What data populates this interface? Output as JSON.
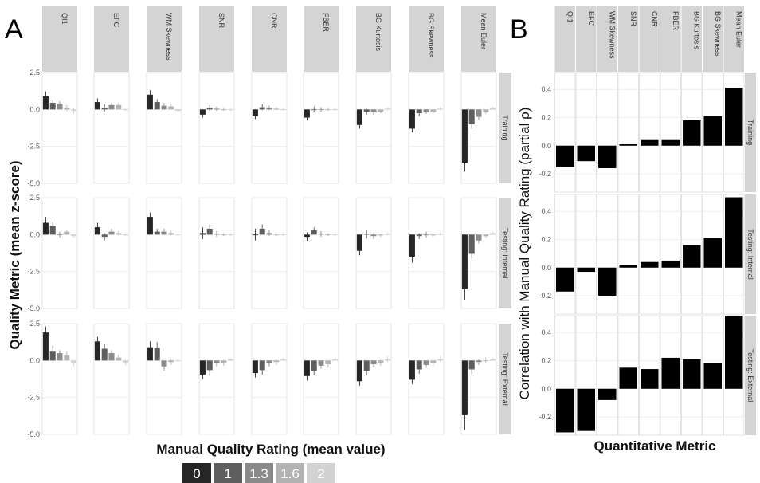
{
  "panel_a": {
    "letter": "A",
    "xlabel": "Manual Quality Rating (mean value)",
    "ylabel": "Quality Metric (mean z-score)"
  },
  "panel_b": {
    "letter": "B",
    "xlabel": "Quantitative Metric",
    "ylabel": "Correlation with Manual Quality Rating (partial ρ)"
  },
  "legend": {
    "items": [
      {
        "label": "0",
        "color": "#262626"
      },
      {
        "label": "1",
        "color": "#5e5e5e"
      },
      {
        "label": "1.3",
        "color": "#8a8a8a"
      },
      {
        "label": "1.6",
        "color": "#b3b3b3"
      },
      {
        "label": "2",
        "color": "#d2d2d2"
      }
    ]
  },
  "chart_data": [
    {
      "type": "bar",
      "panel": "A",
      "metrics": [
        "QI1",
        "EFC",
        "WM Skewness",
        "SNR",
        "CNR",
        "FBER",
        "BG Kurtosis",
        "BG Skewness",
        "Mean Euler"
      ],
      "rows": [
        "Training",
        "Testing: Internal",
        "Testing: External"
      ],
      "categories": [
        "0",
        "1",
        "1.3",
        "1.6",
        "2"
      ],
      "ylim": [
        -5.0,
        2.5
      ],
      "yticks": [
        "2.5",
        "0.0",
        "-2.5",
        "-5.0"
      ],
      "values": {
        "Training": [
          [
            0.9,
            0.45,
            0.4,
            0.1,
            -0.1
          ],
          [
            0.5,
            0.1,
            0.3,
            0.3,
            0.0
          ],
          [
            1.0,
            0.5,
            0.25,
            0.2,
            -0.1
          ],
          [
            -0.35,
            0.1,
            0.05,
            0.0,
            0.0
          ],
          [
            -0.45,
            0.15,
            0.1,
            0.05,
            0.0
          ],
          [
            -0.55,
            0.0,
            0.0,
            0.0,
            0.0
          ],
          [
            -1.05,
            -0.15,
            -0.2,
            -0.15,
            0.05
          ],
          [
            -1.3,
            -0.25,
            -0.15,
            -0.2,
            0.05
          ],
          [
            -3.6,
            -1.0,
            -0.5,
            -0.2,
            0.1
          ]
        ],
        "Testing: Internal": [
          [
            0.8,
            0.6,
            0.0,
            0.2,
            -0.1
          ],
          [
            0.5,
            -0.15,
            0.2,
            0.1,
            0.0
          ],
          [
            1.2,
            0.2,
            0.2,
            0.1,
            0.0
          ],
          [
            0.1,
            0.4,
            0.05,
            0.0,
            0.0
          ],
          [
            0.0,
            0.4,
            0.1,
            0.0,
            0.0
          ],
          [
            -0.15,
            0.3,
            0.05,
            0.0,
            0.0
          ],
          [
            -1.1,
            0.05,
            -0.1,
            -0.05,
            0.05
          ],
          [
            -1.5,
            -0.1,
            0.0,
            -0.05,
            0.05
          ],
          [
            -3.7,
            -1.3,
            -0.4,
            -0.1,
            0.1
          ]
        ],
        "Testing: External": [
          [
            1.9,
            0.6,
            0.5,
            0.4,
            -0.2
          ],
          [
            1.3,
            0.8,
            0.5,
            0.2,
            -0.15
          ],
          [
            0.9,
            0.85,
            -0.4,
            -0.1,
            0.0
          ],
          [
            -0.95,
            -0.65,
            -0.2,
            -0.15,
            0.1
          ],
          [
            -0.85,
            -0.65,
            -0.2,
            -0.1,
            0.1
          ],
          [
            -1.05,
            -0.7,
            -0.35,
            -0.25,
            0.1
          ],
          [
            -1.4,
            -0.7,
            -0.25,
            -0.15,
            0.1
          ],
          [
            -1.3,
            -0.6,
            -0.3,
            -0.2,
            0.1
          ],
          [
            -3.7,
            -0.6,
            -0.1,
            0.0,
            0.1
          ]
        ]
      },
      "errors": {
        "Training": [
          [
            0.3,
            0.2,
            0.15,
            0.2,
            0.2
          ],
          [
            0.25,
            0.25,
            0.15,
            0.15,
            0.1
          ],
          [
            0.3,
            0.2,
            0.2,
            0.15,
            0.1
          ],
          [
            0.2,
            0.2,
            0.15,
            0.1,
            0.1
          ],
          [
            0.2,
            0.2,
            0.15,
            0.1,
            0.1
          ],
          [
            0.2,
            0.2,
            0.15,
            0.1,
            0.1
          ],
          [
            0.25,
            0.2,
            0.15,
            0.1,
            0.1
          ],
          [
            0.25,
            0.2,
            0.15,
            0.1,
            0.1
          ],
          [
            0.6,
            0.3,
            0.2,
            0.1,
            0.1
          ]
        ],
        "Testing: Internal": [
          [
            0.4,
            0.3,
            0.2,
            0.15,
            0.1
          ],
          [
            0.3,
            0.25,
            0.2,
            0.15,
            0.1
          ],
          [
            0.3,
            0.2,
            0.2,
            0.15,
            0.1
          ],
          [
            0.4,
            0.3,
            0.2,
            0.1,
            0.1
          ],
          [
            0.4,
            0.3,
            0.2,
            0.1,
            0.1
          ],
          [
            0.3,
            0.2,
            0.2,
            0.1,
            0.1
          ],
          [
            0.3,
            0.3,
            0.2,
            0.1,
            0.1
          ],
          [
            0.4,
            0.2,
            0.2,
            0.1,
            0.1
          ],
          [
            0.7,
            0.3,
            0.2,
            0.1,
            0.1
          ]
        ],
        "Testing: External": [
          [
            0.4,
            0.4,
            0.2,
            0.2,
            0.2
          ],
          [
            0.3,
            0.3,
            0.2,
            0.2,
            0.2
          ],
          [
            0.4,
            0.4,
            0.3,
            0.2,
            0.1
          ],
          [
            0.3,
            0.3,
            0.2,
            0.2,
            0.1
          ],
          [
            0.3,
            0.3,
            0.2,
            0.2,
            0.1
          ],
          [
            0.3,
            0.3,
            0.2,
            0.2,
            0.1
          ],
          [
            0.3,
            0.3,
            0.2,
            0.2,
            0.2
          ],
          [
            0.3,
            0.3,
            0.2,
            0.2,
            0.2
          ],
          [
            1.0,
            0.3,
            0.2,
            0.2,
            0.1
          ]
        ]
      }
    },
    {
      "type": "bar",
      "panel": "B",
      "metrics": [
        "QI1",
        "EFC",
        "WM Skewness",
        "SNR",
        "CNR",
        "FBER",
        "BG Kurtosis",
        "BG Skewness",
        "Mean Euler"
      ],
      "rows": [
        "Training",
        "Testing: Internal",
        "Testing: External"
      ],
      "ylim": [
        -0.33,
        0.52
      ],
      "yticks": [
        0.4,
        0.2,
        0.0,
        -0.2
      ],
      "values": {
        "Training": [
          -0.15,
          -0.11,
          -0.16,
          0.01,
          0.04,
          0.04,
          0.18,
          0.21,
          0.41
        ],
        "Testing: Internal": [
          -0.17,
          -0.03,
          -0.2,
          0.02,
          0.04,
          0.05,
          0.16,
          0.21,
          0.5
        ],
        "Testing: External": [
          -0.31,
          -0.3,
          -0.08,
          0.15,
          0.14,
          0.22,
          0.21,
          0.18,
          0.52
        ]
      },
      "color": "#000000"
    }
  ]
}
